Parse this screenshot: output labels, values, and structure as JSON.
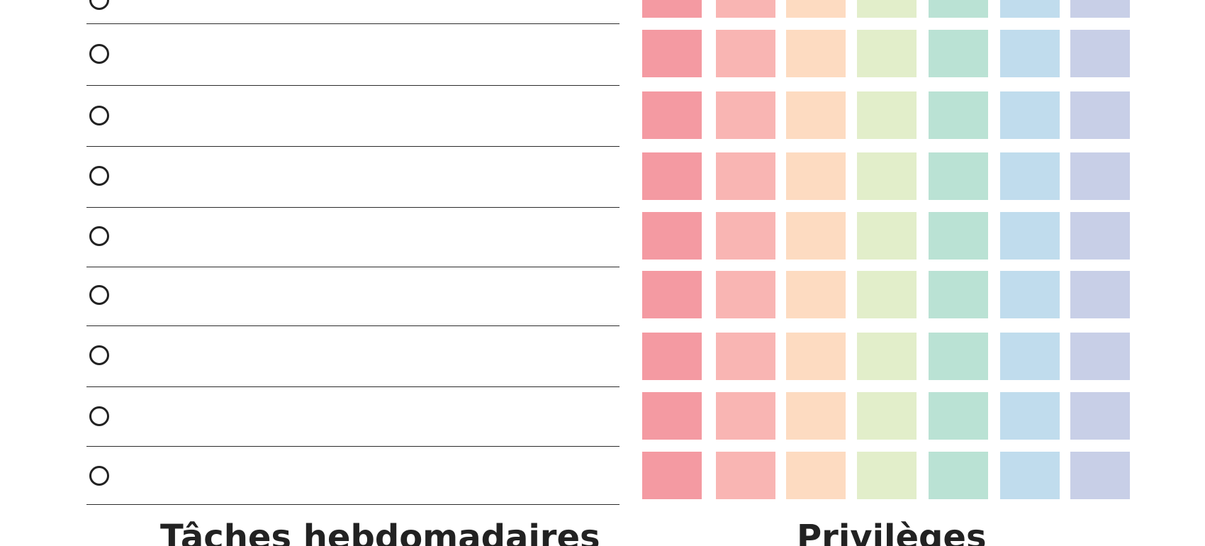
{
  "sections": {
    "tasks_heading": "Tâches hebdomadaires",
    "privileges_heading": "Privilèges"
  },
  "task_list": {
    "rows": 9,
    "checked": [
      false,
      false,
      false,
      false,
      false,
      false,
      false,
      false,
      false
    ],
    "line_color": "#2b2b2b",
    "checkbox_color": "#222222"
  },
  "privileges_grid": {
    "rows": 9,
    "column_colors": [
      "#f49aa2",
      "#f9b5b3",
      "#fddbc1",
      "#e2eeca",
      "#bae2d4",
      "#c0dced",
      "#c8cfe7"
    ]
  }
}
